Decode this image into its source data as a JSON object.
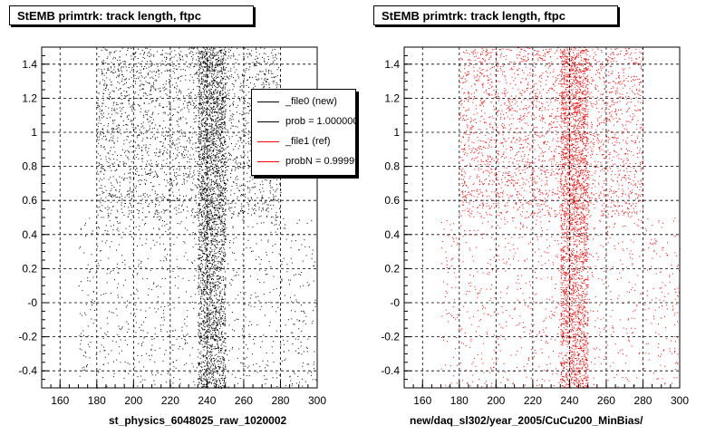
{
  "chart_data": [
    {
      "type": "scatter",
      "title": "StEMB primtrk: track length, ftpc",
      "xlabel": "st_physics_6048025_raw_1020002",
      "ylabel": "",
      "xlim": [
        150,
        300
      ],
      "ylim": [
        -0.5,
        1.5
      ],
      "xticks": [
        "160",
        "180",
        "200",
        "220",
        "240",
        "260",
        "280",
        "300"
      ],
      "yticks": [
        "-0.4",
        "-0.2",
        "-0",
        "0.2",
        "0.4",
        "0.6",
        "0.8",
        "1",
        "1.2",
        "1.4"
      ],
      "grid": true,
      "marker_color": "#000000",
      "series": [
        {
          "density_bands": [
            {
              "x": [
                180,
                280
              ],
              "y": [
                0.5,
                1.5
              ],
              "weight": "high"
            },
            {
              "x": [
                170,
                300
              ],
              "y": [
                -0.5,
                0.5
              ],
              "weight": "low"
            },
            {
              "x": [
                235,
                250
              ],
              "y": [
                -0.5,
                1.5
              ],
              "weight": "high"
            }
          ]
        }
      ],
      "legend": {
        "placement": "top-right",
        "entries": [
          {
            "label": "_file0 (new)",
            "color": "#000000"
          },
          {
            "label": "prob = 1.000000",
            "color": "#000000"
          },
          {
            "label": "_file1 (ref)",
            "color": "#ff0000"
          },
          {
            "label": "probN = 0.999999",
            "color": "#ff0000"
          }
        ]
      }
    },
    {
      "type": "scatter",
      "title": "StEMB primtrk: track length, ftpc",
      "xlabel": "new/daq_sl302/year_2005/CuCu200_MinBias/",
      "ylabel": "",
      "xlim": [
        150,
        300
      ],
      "ylim": [
        -0.5,
        1.5
      ],
      "xticks": [
        "160",
        "180",
        "200",
        "220",
        "240",
        "260",
        "280",
        "300"
      ],
      "yticks": [
        "-0.4",
        "-0.2",
        "-0",
        "0.2",
        "0.4",
        "0.6",
        "0.8",
        "1",
        "1.2",
        "1.4"
      ],
      "grid": true,
      "marker_color": "#ff0000",
      "series": [
        {
          "density_bands": [
            {
              "x": [
                180,
                280
              ],
              "y": [
                0.5,
                1.5
              ],
              "weight": "high"
            },
            {
              "x": [
                170,
                300
              ],
              "y": [
                -0.5,
                0.5
              ],
              "weight": "low"
            },
            {
              "x": [
                235,
                250
              ],
              "y": [
                -0.5,
                1.5
              ],
              "weight": "high"
            }
          ]
        }
      ]
    }
  ]
}
